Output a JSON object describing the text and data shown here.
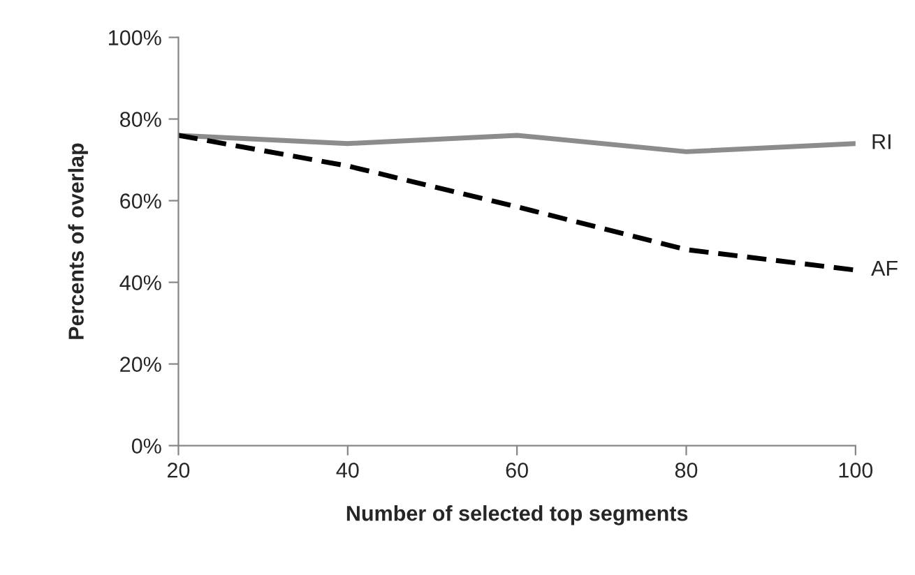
{
  "chart_data": {
    "type": "line",
    "xlabel": "Number of selected top segments",
    "ylabel": "Percents of overlap",
    "x": [
      20,
      40,
      60,
      80,
      100
    ],
    "series": [
      {
        "name": "RI",
        "color": "#8c8c8c",
        "line_style": "solid",
        "values": [
          76,
          74,
          76,
          72,
          74
        ]
      },
      {
        "name": "AF",
        "color": "#000000",
        "line_style": "dashed",
        "values": [
          76,
          68.5,
          58.5,
          48,
          43
        ]
      }
    ],
    "xlim": [
      20,
      100
    ],
    "xticks": [
      20,
      40,
      60,
      80,
      100
    ],
    "ylim": [
      0,
      100
    ],
    "yticks": [
      {
        "value": 0,
        "label": "0%"
      },
      {
        "value": 20,
        "label": "20%"
      },
      {
        "value": 40,
        "label": "40%"
      },
      {
        "value": 60,
        "label": "60%"
      },
      {
        "value": 80,
        "label": "80%"
      },
      {
        "value": 100,
        "label": "100%"
      }
    ],
    "grid": false,
    "marker": "none"
  }
}
